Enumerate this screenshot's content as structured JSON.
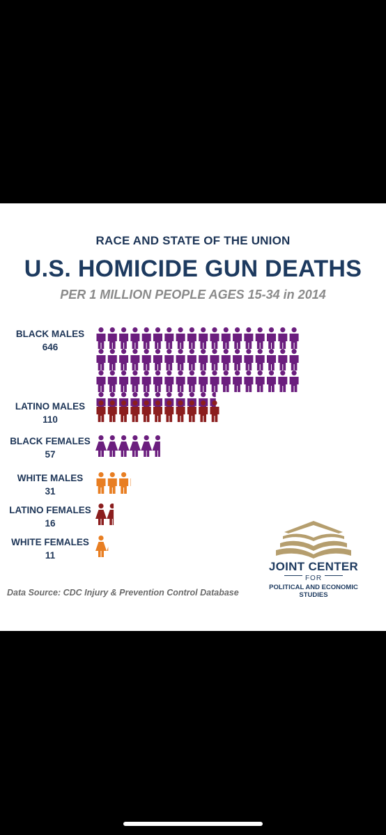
{
  "header": {
    "kicker": "RACE AND STATE OF THE UNION",
    "title": "U.S. HOMICIDE GUN DEATHS",
    "subtitle": "PER 1 MILLION PEOPLE AGES 15-34 in 2014"
  },
  "chart_data": {
    "type": "bar",
    "style": "pictogram",
    "categories": [
      "BLACK MALES",
      "LATINO MALES",
      "BLACK FEMALES",
      "WHITE MALES",
      "LATINO FEMALES",
      "WHITE FEMALES"
    ],
    "values": [
      646,
      110,
      57,
      31,
      16,
      11
    ],
    "icon_counts": [
      64.6,
      11.0,
      5.7,
      3.1,
      1.6,
      1.1
    ],
    "icon_types": [
      "male",
      "male",
      "female",
      "male",
      "female",
      "female"
    ],
    "colors": [
      "#6b1e7e",
      "#8b1e1e",
      "#6b1e7e",
      "#e87e22",
      "#8b1e1e",
      "#e87e22"
    ]
  },
  "source": "Data Source: CDC Injury & Prevention Control Database",
  "logo": {
    "name": "JOINT CENTER",
    "for": "FOR",
    "sub1": "POLITICAL AND ECONOMIC",
    "sub2": "STUDIES",
    "colors": {
      "navy": "#1d3a5f",
      "gold": "#b59e6e"
    }
  }
}
